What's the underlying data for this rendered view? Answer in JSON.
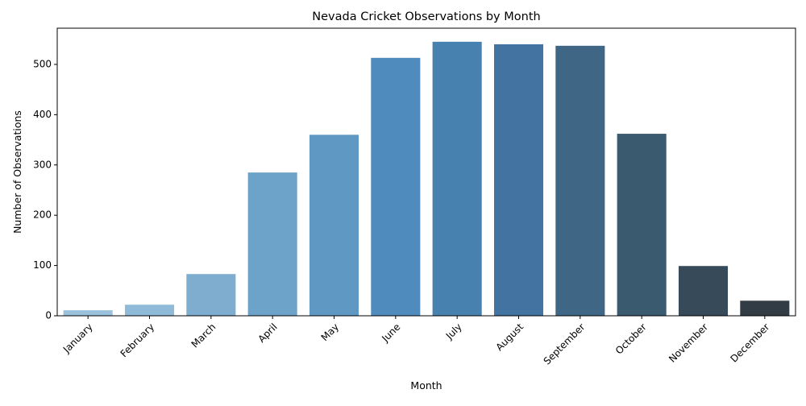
{
  "chart_data": {
    "type": "bar",
    "title": "Nevada Cricket Observations by Month",
    "xlabel": "Month",
    "ylabel": "Number of Observations",
    "categories": [
      "January",
      "February",
      "March",
      "April",
      "May",
      "June",
      "July",
      "August",
      "September",
      "October",
      "November",
      "December"
    ],
    "values": [
      11,
      22,
      83,
      285,
      360,
      513,
      545,
      540,
      537,
      362,
      99,
      30
    ],
    "colors": [
      "#9ac2dc",
      "#8fbbd8",
      "#7eadcf",
      "#6ea3c9",
      "#5f98c2",
      "#4f8bbc",
      "#4781b0",
      "#4373a0",
      "#3f6785",
      "#3a5a6f",
      "#374a5a",
      "#323c45"
    ],
    "ylim": [
      0,
      572
    ],
    "yticks": [
      0,
      100,
      200,
      300,
      400,
      500
    ],
    "x_tick_rotation": 45,
    "grid": false,
    "legend": "none"
  }
}
